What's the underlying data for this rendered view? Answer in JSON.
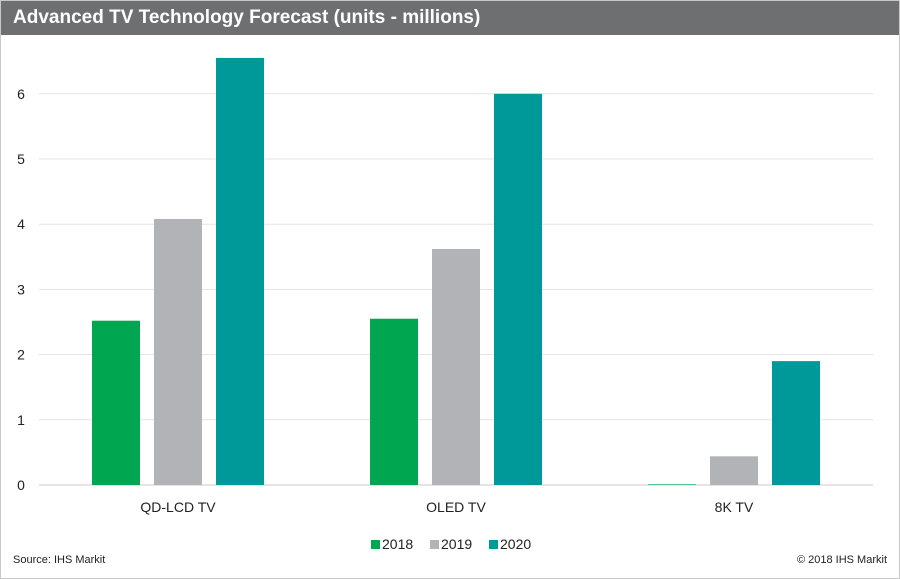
{
  "chart_data": {
    "type": "bar",
    "title": "Advanced TV Technology Forecast (units - millions)",
    "categories": [
      "QD-LCD TV",
      "OLED TV",
      "8K TV"
    ],
    "series": [
      {
        "name": "2018",
        "color": "#00a650",
        "values": [
          2.52,
          2.55,
          0.01
        ]
      },
      {
        "name": "2019",
        "color": "#b1b3b6",
        "values": [
          4.08,
          3.62,
          0.44
        ]
      },
      {
        "name": "2020",
        "color": "#00999a",
        "values": [
          6.55,
          6.0,
          1.9
        ]
      }
    ],
    "ylim": [
      0,
      6.6
    ],
    "yticks": [
      0,
      1,
      2,
      3,
      4,
      5,
      6
    ],
    "grid": true,
    "legend": "bottom-center",
    "xlabel": "",
    "ylabel": ""
  },
  "footer": {
    "source": "Source: IHS Markit",
    "copyright": "© 2018 IHS Markit"
  }
}
